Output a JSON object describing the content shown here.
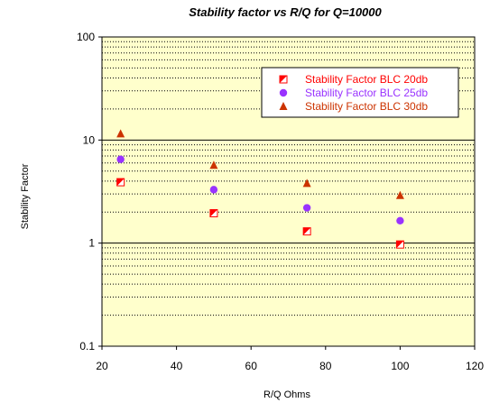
{
  "chart_data": {
    "type": "scatter",
    "title": "Stability factor vs R/Q for Q=10000",
    "xlabel": "R/Q Ohms",
    "ylabel": "Stability Factor",
    "xlim": [
      20,
      120
    ],
    "ylim": [
      0.1,
      100
    ],
    "yscale": "log",
    "x_ticks": [
      20,
      40,
      60,
      80,
      100,
      120
    ],
    "y_ticks": [
      0.1,
      1,
      10,
      100
    ],
    "x_tick_labels": [
      "20",
      "40",
      "60",
      "80",
      "100",
      "120"
    ],
    "y_tick_labels": [
      "0.1",
      "1",
      "10",
      "100"
    ],
    "grid": true,
    "plot_background": "#ffffcc",
    "legend_position": "top-right",
    "series": [
      {
        "name": "Stability Factor BLC 20db",
        "color": "#ff0000",
        "marker": "half-square",
        "x": [
          25,
          50,
          75,
          100
        ],
        "y": [
          3.9,
          1.95,
          1.3,
          0.97
        ]
      },
      {
        "name": "Stability Factor BLC 25db",
        "color": "#9933ff",
        "marker": "circle",
        "x": [
          25,
          50,
          75,
          100
        ],
        "y": [
          6.5,
          3.3,
          2.2,
          1.65
        ]
      },
      {
        "name": "Stability Factor BLC 30db",
        "color": "#cc3300",
        "marker": "triangle",
        "x": [
          25,
          50,
          75,
          100
        ],
        "y": [
          11.5,
          5.7,
          3.8,
          2.9
        ]
      }
    ]
  }
}
